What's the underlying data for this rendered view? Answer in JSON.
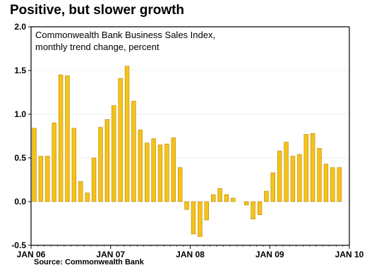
{
  "title": "Positive, but slower growth",
  "source": "Source: Commonwealth Bank",
  "chart_data": {
    "type": "bar",
    "subtitle_lines": [
      "Commonwealth Bank Business Sales Index,",
      "monthly trend change, percent"
    ],
    "yticks": [
      "2.0",
      "1.5",
      "1.0",
      "0.5",
      "0.0",
      "-0.5"
    ],
    "ytick_values": [
      2.0,
      1.5,
      1.0,
      0.5,
      0.0,
      -0.5
    ],
    "ylim": [
      -0.5,
      2.0
    ],
    "xticks": [
      "JAN 06",
      "JAN 07",
      "JAN 08",
      "JAN 09",
      "JAN 10"
    ],
    "x_start": "JAN 06",
    "x_end": "JAN 10",
    "grid": true,
    "bar_color": "#F5C218",
    "bar_edge": "#B8860B",
    "series": [
      {
        "values": [
          0.84,
          0.52,
          0.52,
          0.9,
          1.45,
          1.44,
          0.84,
          0.23,
          0.1,
          0.5,
          0.85,
          0.94,
          1.1,
          1.41,
          1.55,
          1.15,
          0.82,
          0.67,
          0.72,
          0.65,
          0.66,
          0.73,
          0.39,
          -0.09,
          -0.37,
          -0.4,
          -0.21,
          0.08,
          0.15,
          0.08,
          0.04,
          0.0,
          -0.04,
          -0.2,
          -0.15,
          0.12,
          0.33,
          0.58,
          0.68,
          0.52,
          0.54,
          0.77,
          0.78,
          0.61,
          0.43,
          0.39,
          0.39
        ]
      }
    ]
  }
}
